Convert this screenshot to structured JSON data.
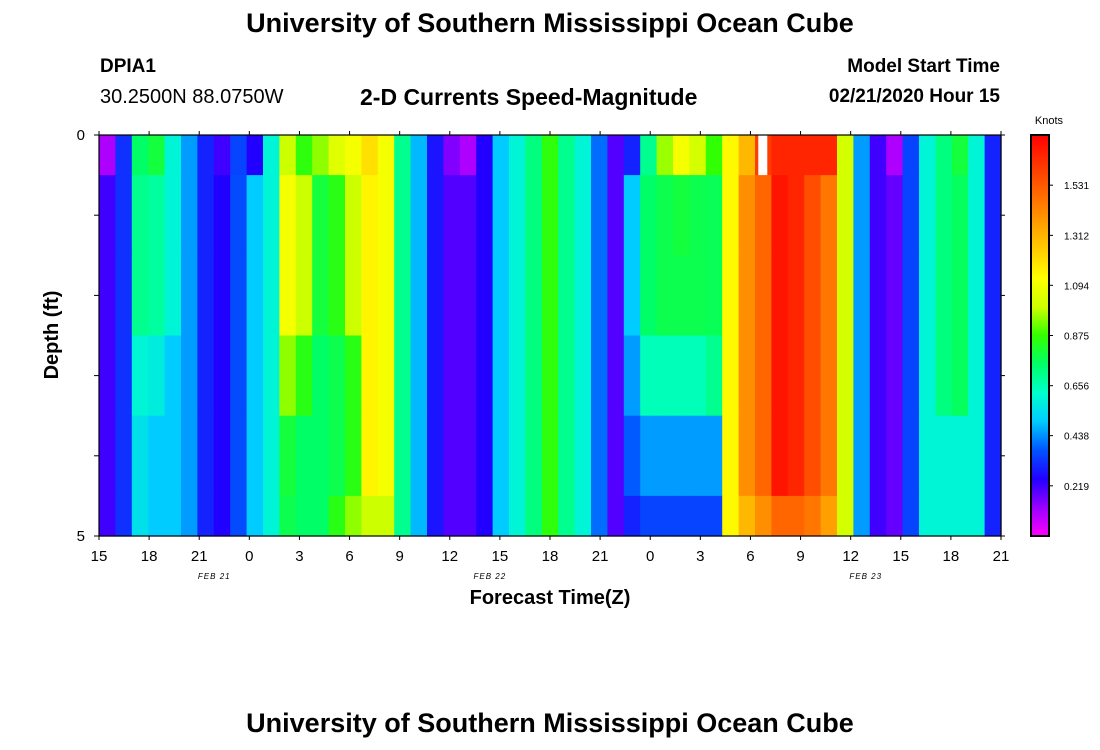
{
  "header": {
    "title": "University of Southern Mississippi Ocean Cube",
    "station": "DPIA1",
    "coords": "30.2500N 88.0750W",
    "subtitle": "2-D Currents Speed-Magnitude",
    "model_start_label": "Model Start Time",
    "model_start_value": "02/21/2020 Hour 15"
  },
  "footer": {
    "title": "University of Southern Mississippi Ocean Cube"
  },
  "chart_data": {
    "type": "heatmap",
    "title": "2-D Currents Speed-Magnitude",
    "xlabel": "Forecast Time(Z)",
    "ylabel": "Depth (ft)",
    "colorbar_label": "Knots",
    "x_tick_labels": [
      "15",
      "18",
      "21",
      "0",
      "3",
      "6",
      "9",
      "12",
      "15",
      "18",
      "21",
      "0",
      "3",
      "6",
      "9",
      "12",
      "15",
      "18",
      "21"
    ],
    "date_labels": [
      "FEB 21",
      "FEB 22",
      "FEB 23"
    ],
    "y_tick_labels": [
      "0",
      "5"
    ],
    "ylim": [
      0,
      5
    ],
    "colorbar_ticks": [
      "1.531",
      "1.312",
      "1.094",
      "0.875",
      "0.656",
      "0.438",
      "0.219"
    ],
    "colorbar_range": [
      0.0,
      1.75
    ],
    "colorscale": [
      "#ff00ff",
      "#9900ff",
      "#2200ff",
      "#0055ff",
      "#00ccff",
      "#00ffcc",
      "#00ff66",
      "#33ff00",
      "#ccff00",
      "#ffff00",
      "#ffcc00",
      "#ff9900",
      "#ff6600",
      "#ff3300",
      "#ff0000"
    ],
    "hours_since_start": [
      0,
      1,
      2,
      3,
      4,
      5,
      6,
      7,
      8,
      9,
      10,
      11,
      12,
      13,
      14,
      15,
      16,
      17,
      18,
      19,
      20,
      21,
      22,
      23,
      24,
      25,
      26,
      27,
      28,
      29,
      30,
      31,
      32,
      33,
      34,
      35,
      36,
      37,
      38,
      39,
      40,
      41,
      42,
      43,
      44,
      45,
      46,
      47,
      48,
      49,
      50,
      51,
      52,
      53,
      54
    ],
    "depth_bins": [
      "0-0.5",
      "0.5-1.5",
      "1.5-2.5",
      "2.5-3.5",
      "3.5-4.5",
      "4.5-5"
    ],
    "missing_cell": {
      "hour": 40,
      "depth_bin": "0-0.5"
    },
    "speed_knots": [
      [
        0.1,
        0.32,
        0.75,
        0.8,
        0.6,
        0.45,
        0.3,
        0.22,
        0.35,
        0.25,
        0.6,
        1.0,
        0.86,
        0.95,
        1.05,
        1.1,
        1.2,
        1.1,
        0.7,
        0.48,
        0.28,
        0.15,
        0.1,
        0.25,
        0.5,
        0.6,
        0.72,
        0.86,
        0.7,
        0.6,
        0.4,
        0.2,
        0.3,
        0.7,
        0.96,
        1.1,
        1.02,
        0.87,
        1.14,
        1.3,
        1.6,
        1.66,
        1.66,
        1.66,
        1.66,
        1.02,
        0.45,
        0.22,
        0.1,
        0.35,
        0.6,
        0.72,
        0.8,
        0.6,
        0.3
      ],
      [
        0.22,
        0.32,
        0.7,
        0.68,
        0.6,
        0.45,
        0.3,
        0.25,
        0.36,
        0.5,
        0.6,
        1.1,
        1.0,
        0.8,
        0.85,
        1.0,
        1.15,
        1.1,
        0.7,
        0.48,
        0.28,
        0.2,
        0.2,
        0.25,
        0.5,
        0.6,
        0.72,
        0.86,
        0.7,
        0.6,
        0.4,
        0.2,
        0.5,
        0.75,
        0.78,
        0.8,
        0.78,
        0.77,
        1.14,
        1.4,
        1.5,
        1.7,
        1.66,
        1.56,
        1.46,
        1.02,
        0.45,
        0.22,
        0.18,
        0.35,
        0.6,
        0.72,
        0.76,
        0.6,
        0.3
      ],
      [
        0.22,
        0.32,
        0.7,
        0.68,
        0.6,
        0.45,
        0.3,
        0.25,
        0.36,
        0.5,
        0.6,
        1.1,
        1.0,
        0.8,
        0.85,
        1.0,
        1.15,
        1.1,
        0.7,
        0.48,
        0.28,
        0.2,
        0.2,
        0.25,
        0.5,
        0.6,
        0.72,
        0.86,
        0.7,
        0.6,
        0.4,
        0.2,
        0.5,
        0.75,
        0.78,
        0.78,
        0.78,
        0.77,
        1.14,
        1.4,
        1.5,
        1.7,
        1.66,
        1.56,
        1.46,
        1.02,
        0.45,
        0.22,
        0.18,
        0.35,
        0.6,
        0.72,
        0.76,
        0.6,
        0.3
      ],
      [
        0.22,
        0.32,
        0.6,
        0.58,
        0.5,
        0.45,
        0.3,
        0.25,
        0.36,
        0.5,
        0.6,
        0.95,
        0.85,
        0.75,
        0.78,
        0.85,
        1.15,
        1.1,
        0.7,
        0.48,
        0.28,
        0.2,
        0.2,
        0.25,
        0.5,
        0.6,
        0.72,
        0.86,
        0.7,
        0.6,
        0.4,
        0.2,
        0.45,
        0.65,
        0.65,
        0.65,
        0.65,
        0.7,
        1.14,
        1.4,
        1.5,
        1.7,
        1.66,
        1.56,
        1.46,
        1.02,
        0.45,
        0.22,
        0.18,
        0.35,
        0.6,
        0.72,
        0.76,
        0.6,
        0.3
      ],
      [
        0.22,
        0.32,
        0.55,
        0.5,
        0.5,
        0.45,
        0.3,
        0.25,
        0.36,
        0.5,
        0.6,
        0.8,
        0.75,
        0.75,
        0.78,
        0.85,
        1.15,
        1.1,
        0.7,
        0.48,
        0.28,
        0.2,
        0.2,
        0.25,
        0.5,
        0.6,
        0.72,
        0.86,
        0.7,
        0.6,
        0.4,
        0.2,
        0.38,
        0.45,
        0.45,
        0.45,
        0.45,
        0.45,
        1.14,
        1.4,
        1.5,
        1.7,
        1.66,
        1.56,
        1.46,
        1.02,
        0.45,
        0.22,
        0.18,
        0.35,
        0.6,
        0.6,
        0.6,
        0.6,
        0.3
      ],
      [
        0.22,
        0.32,
        0.55,
        0.5,
        0.5,
        0.45,
        0.3,
        0.25,
        0.36,
        0.5,
        0.6,
        0.78,
        0.75,
        0.75,
        0.85,
        0.95,
        1.0,
        1.0,
        0.7,
        0.48,
        0.28,
        0.2,
        0.2,
        0.25,
        0.5,
        0.6,
        0.72,
        0.86,
        0.7,
        0.6,
        0.4,
        0.2,
        0.3,
        0.35,
        0.35,
        0.35,
        0.35,
        0.35,
        1.14,
        1.3,
        1.4,
        1.5,
        1.5,
        1.46,
        1.36,
        1.02,
        0.45,
        0.22,
        0.18,
        0.35,
        0.6,
        0.6,
        0.6,
        0.6,
        0.3
      ]
    ]
  }
}
